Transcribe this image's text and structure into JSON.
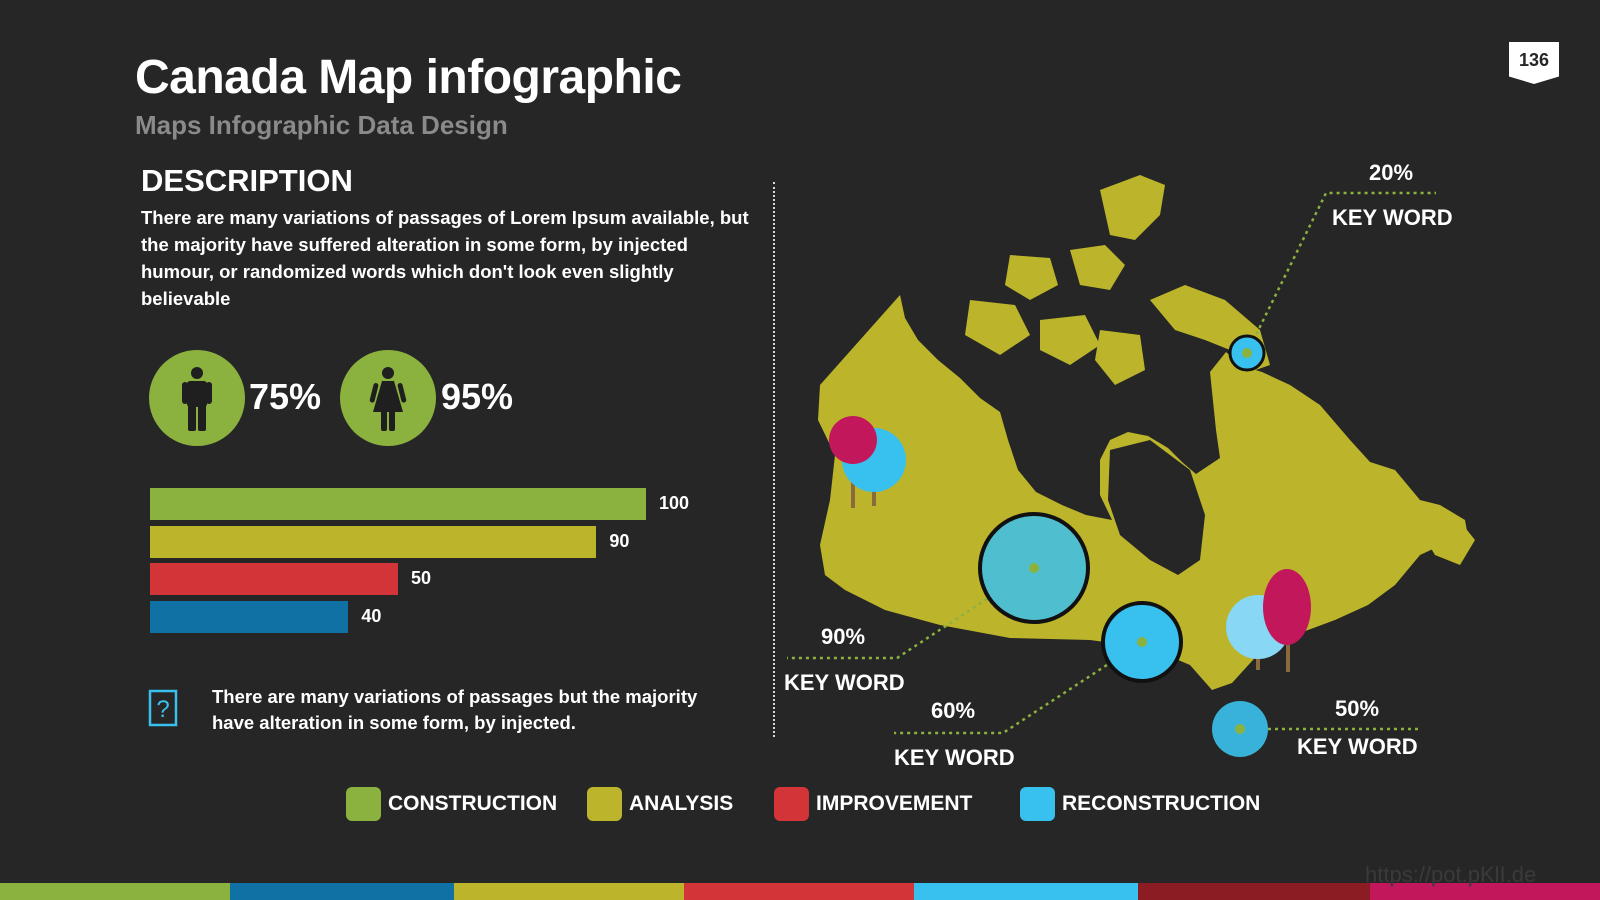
{
  "header": {
    "title": "Canada Map infographic",
    "subtitle": "Maps Infographic Data Design",
    "page_number": "136"
  },
  "description": {
    "heading": "DESCRIPTION",
    "body": "There are many variations of passages of Lorem Ipsum available, but the majority have suffered alteration in some form, by injected humour, or randomized words which don't look even slightly believable"
  },
  "gender": {
    "male": {
      "icon": "male-person-icon",
      "value": "75%"
    },
    "female": {
      "icon": "female-person-icon",
      "value": "95%"
    }
  },
  "bars": [
    {
      "value": 100,
      "label": "100",
      "color": "#8bb23e"
    },
    {
      "value": 90,
      "label": "90",
      "color": "#bcb52b"
    },
    {
      "value": 50,
      "label": "50",
      "color": "#d23438"
    },
    {
      "value": 40,
      "label": "40",
      "color": "#0f71a4"
    }
  ],
  "note": {
    "icon": "question-mark-icon",
    "text": "There are many variations of passages but the majority have alteration in some form, by injected."
  },
  "legend": [
    {
      "label": "CONSTRUCTION",
      "color": "#8bb23e"
    },
    {
      "label": "ANALYSIS",
      "color": "#bcb52b"
    },
    {
      "label": "IMPROVEMENT",
      "color": "#d23438"
    },
    {
      "label": "RECONSTRUCTION",
      "color": "#38c0ef"
    }
  ],
  "callouts": [
    {
      "pct": "20%",
      "keyword": "KEY WORD"
    },
    {
      "pct": "90%",
      "keyword": "KEY WORD"
    },
    {
      "pct": "60%",
      "keyword": "KEY WORD"
    },
    {
      "pct": "50%",
      "keyword": "KEY WORD"
    }
  ],
  "map": {
    "region": "Canada",
    "fill": "#bcb52b"
  },
  "colors": {
    "background": "#262626",
    "green": "#8bb23e",
    "olive": "#bcb52b",
    "red": "#d23438",
    "blue": "#0f71a4",
    "cyan": "#38c0ef",
    "magenta": "#c2185b"
  },
  "watermark": "https://pot.pKlI.de"
}
